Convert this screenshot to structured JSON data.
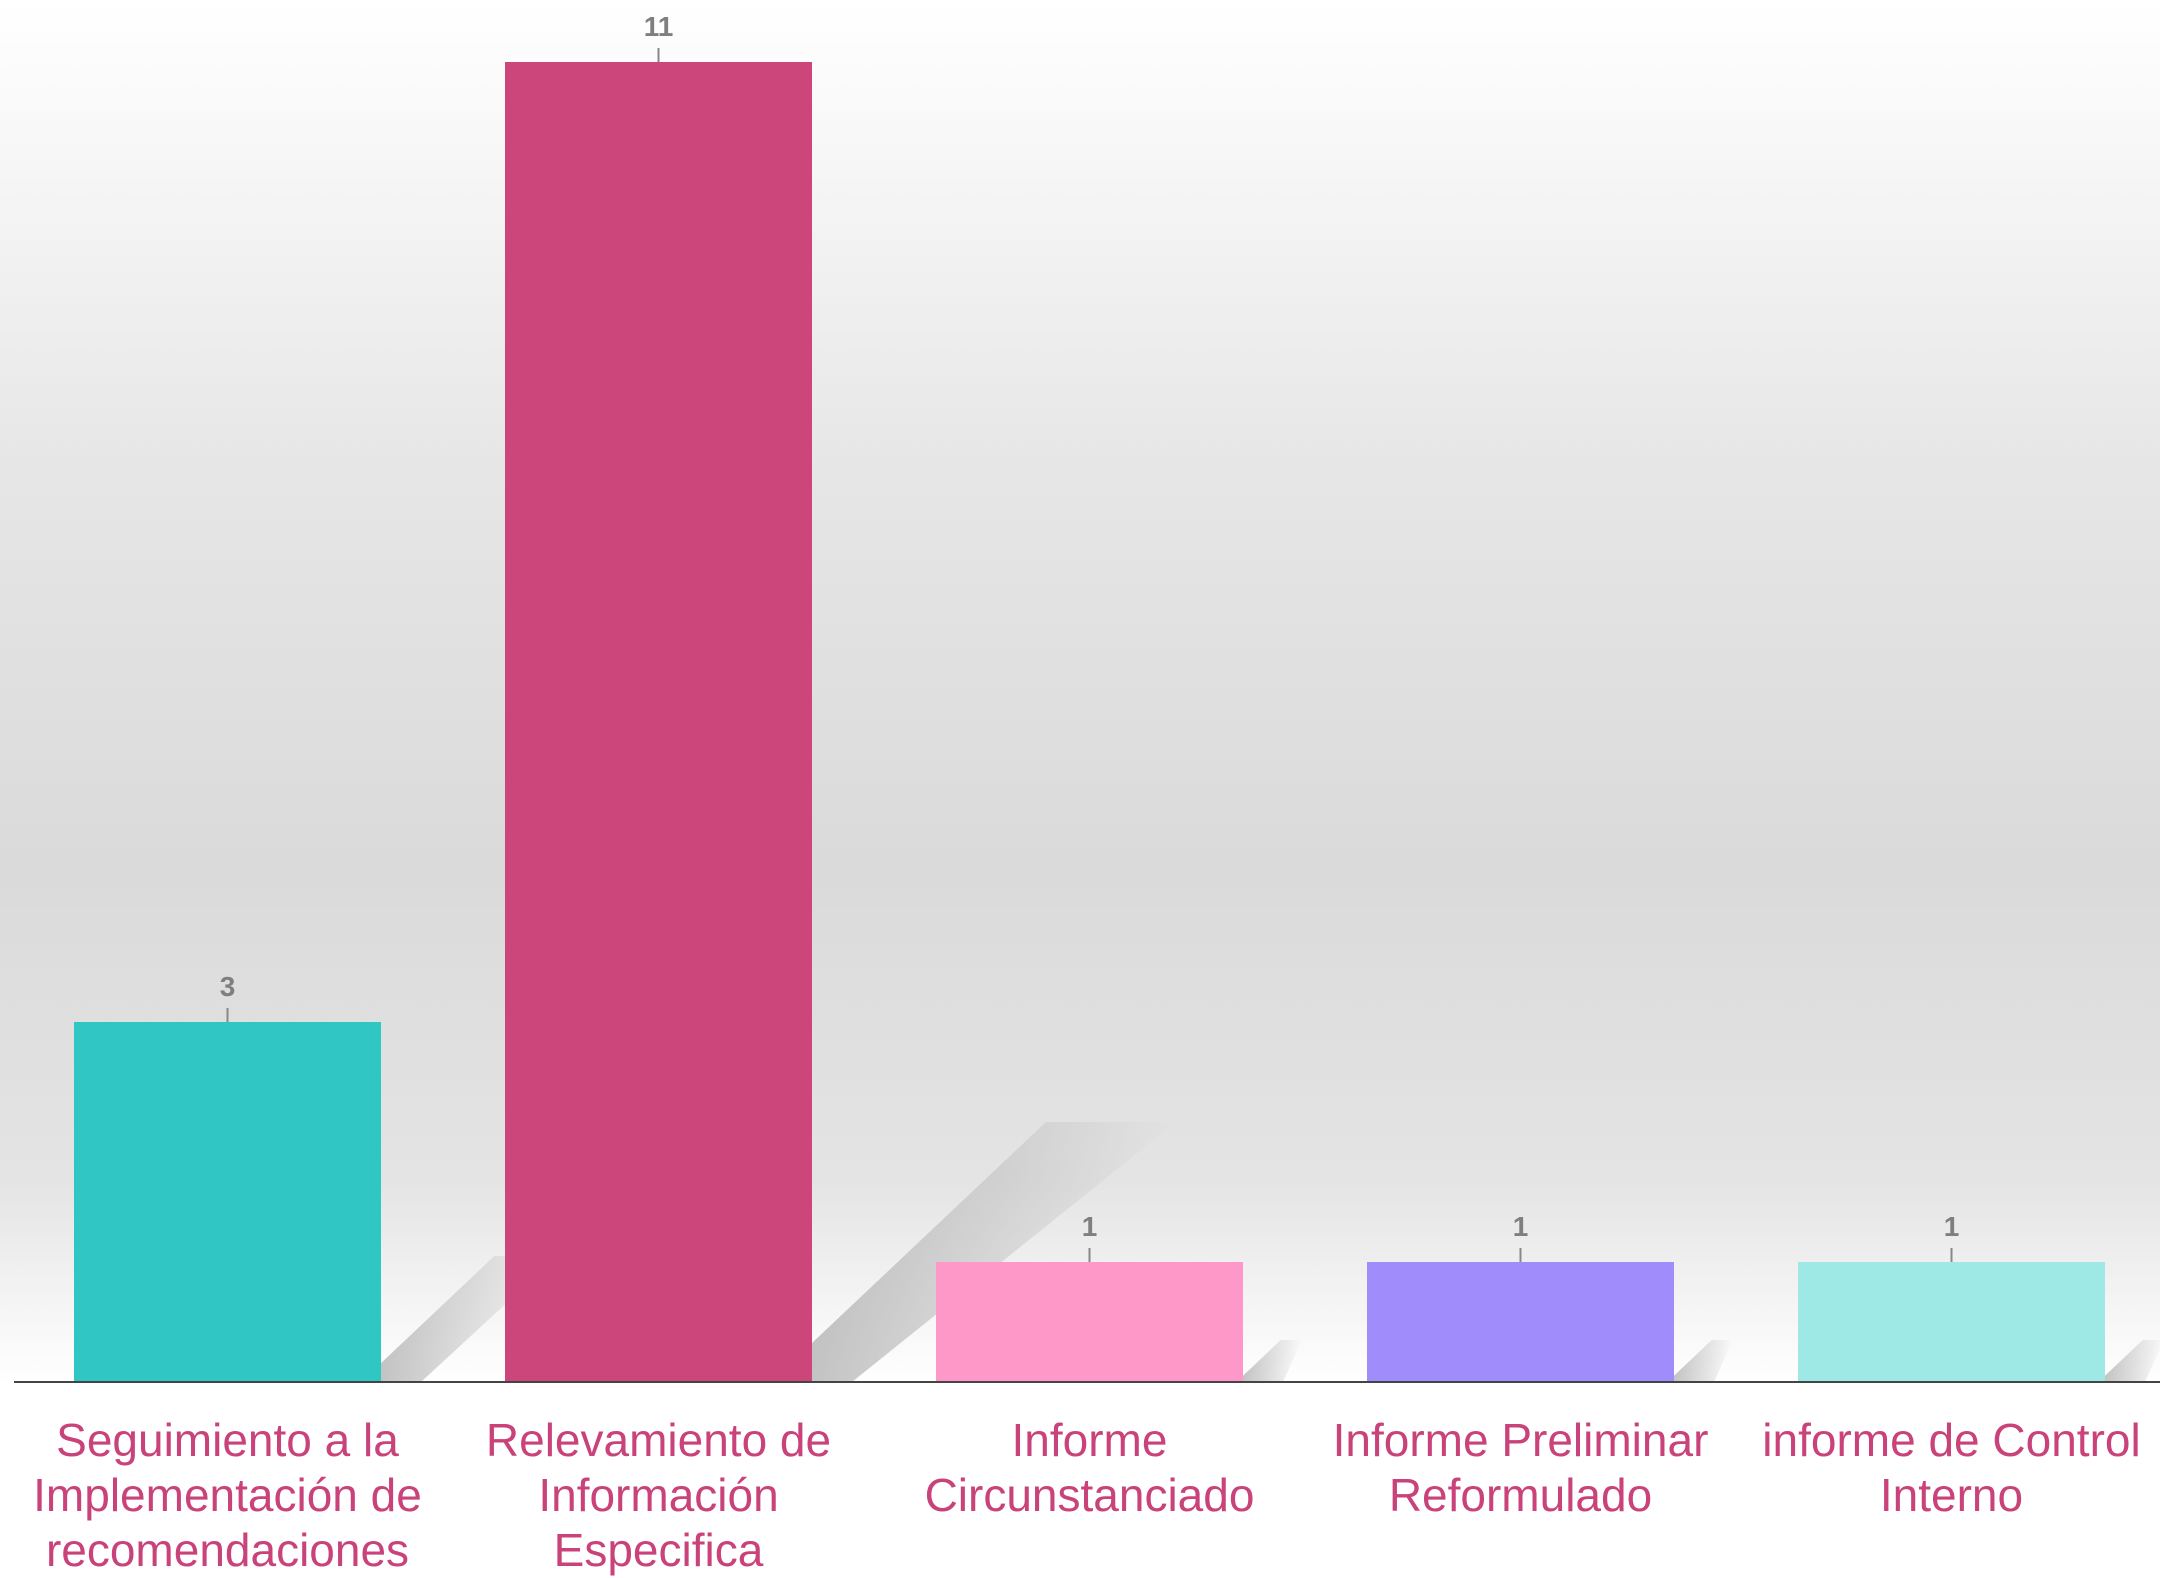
{
  "chart_data": {
    "type": "bar",
    "categories": [
      "Seguimiento a la Implementación de recomendaciones",
      "Relevamiento de Información Especifica",
      "Informe Circunstanciado",
      "Informe Preliminar Reformulado",
      "informe de Control Interno"
    ],
    "values": [
      3,
      11,
      1,
      1,
      1
    ],
    "colors": [
      "#2fc6c4",
      "#cc467b",
      "#fd98c9",
      "#a08cfb",
      "#9ee8e6"
    ]
  }
}
